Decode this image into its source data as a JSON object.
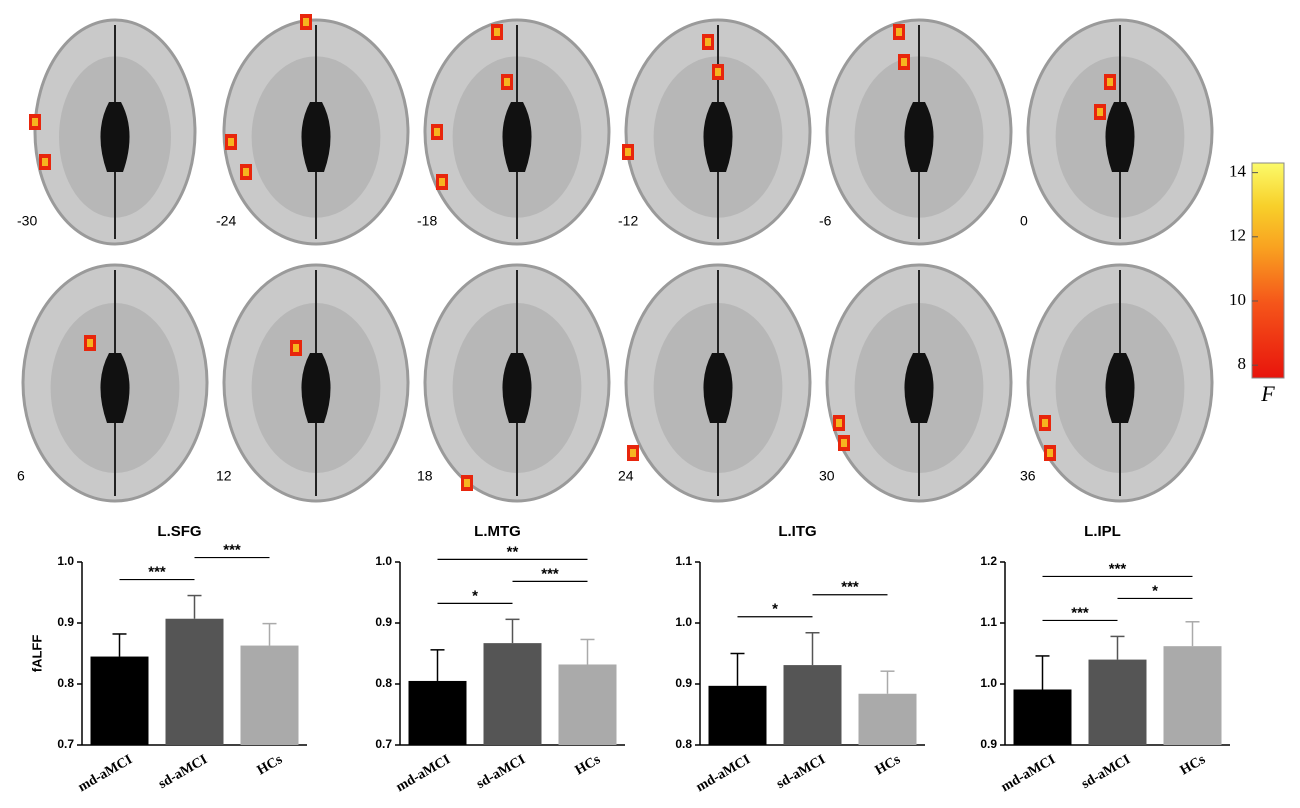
{
  "brain_slices": {
    "labels": [
      "-30",
      "-24",
      "-18",
      "-12",
      "-6",
      "0",
      "6",
      "12",
      "18",
      "24",
      "30",
      "36"
    ]
  },
  "colorbar": {
    "ticks": [
      8,
      10,
      12,
      14
    ],
    "lim": [
      7.6,
      14.3
    ],
    "label": "F"
  },
  "chart_data": [
    {
      "type": "bar",
      "title": "L.SFG",
      "y_label": "fALFF",
      "categories": [
        "md-aMCI",
        "sd-aMCI",
        "HCs"
      ],
      "values": [
        0.845,
        0.907,
        0.863
      ],
      "errors": [
        0.037,
        0.038,
        0.036
      ],
      "colors": [
        "#000000",
        "#555555",
        "#aaaaaa"
      ],
      "ylim": [
        0.7,
        1.0
      ],
      "yticks": [
        0.7,
        0.8,
        0.9,
        {
          "value": 1,
          "label": "1.0"
        }
      ],
      "annotations": [
        {
          "text": "***",
          "from": "md-aMCI",
          "to": "sd-aMCI"
        },
        {
          "text": "***",
          "from": "sd-aMCI",
          "to": "HCs"
        }
      ]
    },
    {
      "type": "bar",
      "title": "L.MTG",
      "categories": [
        "md-aMCI",
        "sd-aMCI",
        "HCs"
      ],
      "values": [
        0.805,
        0.867,
        0.832
      ],
      "errors": [
        0.051,
        0.039,
        0.041
      ],
      "colors": [
        "#000000",
        "#555555",
        "#aaaaaa"
      ],
      "ylim": [
        0.7,
        1.0
      ],
      "yticks": [
        0.7,
        0.8,
        0.9,
        {
          "value": 1,
          "label": "1.0"
        }
      ],
      "annotations": [
        {
          "text": "*",
          "from": "md-aMCI",
          "to": "sd-aMCI"
        },
        {
          "text": "***",
          "from": "sd-aMCI",
          "to": "HCs"
        },
        {
          "text": "**",
          "from": "md-aMCI",
          "to": "HCs"
        }
      ]
    },
    {
      "type": "bar",
      "title": "L.ITG",
      "categories": [
        "md-aMCI",
        "sd-aMCI",
        "HCs"
      ],
      "values": [
        0.897,
        0.931,
        0.884
      ],
      "errors": [
        0.053,
        0.053,
        0.037
      ],
      "colors": [
        "#000000",
        "#555555",
        "#aaaaaa"
      ],
      "ylim": [
        0.8,
        1.1
      ],
      "yticks": [
        0.8,
        0.9,
        {
          "value": 1,
          "label": "1.0"
        },
        1.1
      ],
      "annotations": [
        {
          "text": "*",
          "from": "md-aMCI",
          "to": "sd-aMCI"
        },
        {
          "text": "***",
          "from": "sd-aMCI",
          "to": "HCs"
        }
      ]
    },
    {
      "type": "bar",
      "title": "L.IPL",
      "categories": [
        "md-aMCI",
        "sd-aMCI",
        "HCs"
      ],
      "values": [
        0.991,
        1.04,
        1.062
      ],
      "errors": [
        0.055,
        0.038,
        0.04
      ],
      "colors": [
        "#000000",
        "#555555",
        "#aaaaaa"
      ],
      "ylim": [
        0.9,
        1.2
      ],
      "yticks": [
        0.9,
        {
          "value": 1,
          "label": "1.0"
        },
        1.1,
        1.2
      ],
      "annotations": [
        {
          "text": "***",
          "from": "md-aMCI",
          "to": "sd-aMCI"
        },
        {
          "text": "*",
          "from": "sd-aMCI",
          "to": "HCs"
        },
        {
          "text": "***",
          "from": "md-aMCI",
          "to": "HCs"
        }
      ]
    }
  ]
}
